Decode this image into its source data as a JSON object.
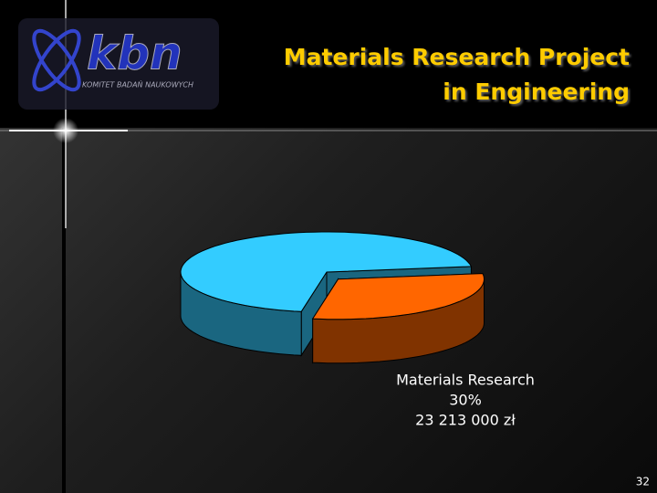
{
  "logo": {
    "name": "kbn",
    "subtitle": "KOMITET BADAŃ NAUKOWYCH"
  },
  "page_number": "32",
  "chart_data": {
    "type": "pie3d",
    "title": [
      "Materials Research Project",
      "in Engineering"
    ],
    "categories": [
      null,
      "Materials Research"
    ],
    "values": [
      70,
      30
    ],
    "value_labels": [
      null,
      "30%"
    ],
    "amount_labels": [
      null,
      "23 213 000 zł"
    ],
    "colors": [
      "#33ccff",
      "#ff6600"
    ],
    "exploded": [
      false,
      true
    ]
  }
}
